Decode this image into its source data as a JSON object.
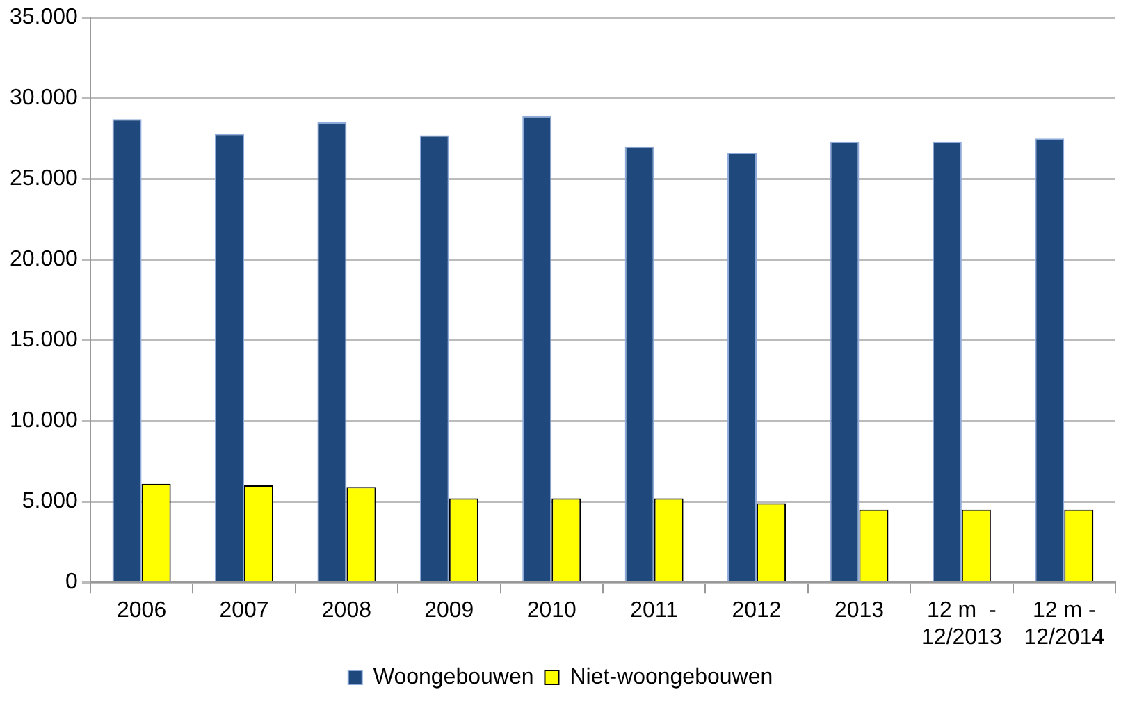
{
  "chart_data": {
    "type": "bar",
    "categories": [
      "2006",
      "2007",
      "2008",
      "2009",
      "2010",
      "2011",
      "2012",
      "2013",
      "12 m  -\n12/2013",
      "12 m -\n12/2014"
    ],
    "series": [
      {
        "name": "Woongebouwen",
        "color": "#1f497d",
        "values": [
          28700,
          27800,
          28500,
          27700,
          28900,
          27000,
          26600,
          27300,
          27300,
          27500
        ]
      },
      {
        "name": "Niet-woongebouwen",
        "color": "#ffff00",
        "values": [
          6100,
          6000,
          5900,
          5200,
          5200,
          5200,
          4900,
          4500,
          4500,
          4500
        ]
      }
    ],
    "ylim": [
      0,
      35000
    ],
    "yticks": [
      {
        "value": 0,
        "label": "0"
      },
      {
        "value": 5000,
        "label": "5.000"
      },
      {
        "value": 10000,
        "label": "10.000"
      },
      {
        "value": 15000,
        "label": "15.000"
      },
      {
        "value": 20000,
        "label": "20.000"
      },
      {
        "value": 25000,
        "label": "25.000"
      },
      {
        "value": 30000,
        "label": "30.000"
      },
      {
        "value": 35000,
        "label": "35.000"
      }
    ],
    "grid": "y",
    "legend": "bottom"
  }
}
